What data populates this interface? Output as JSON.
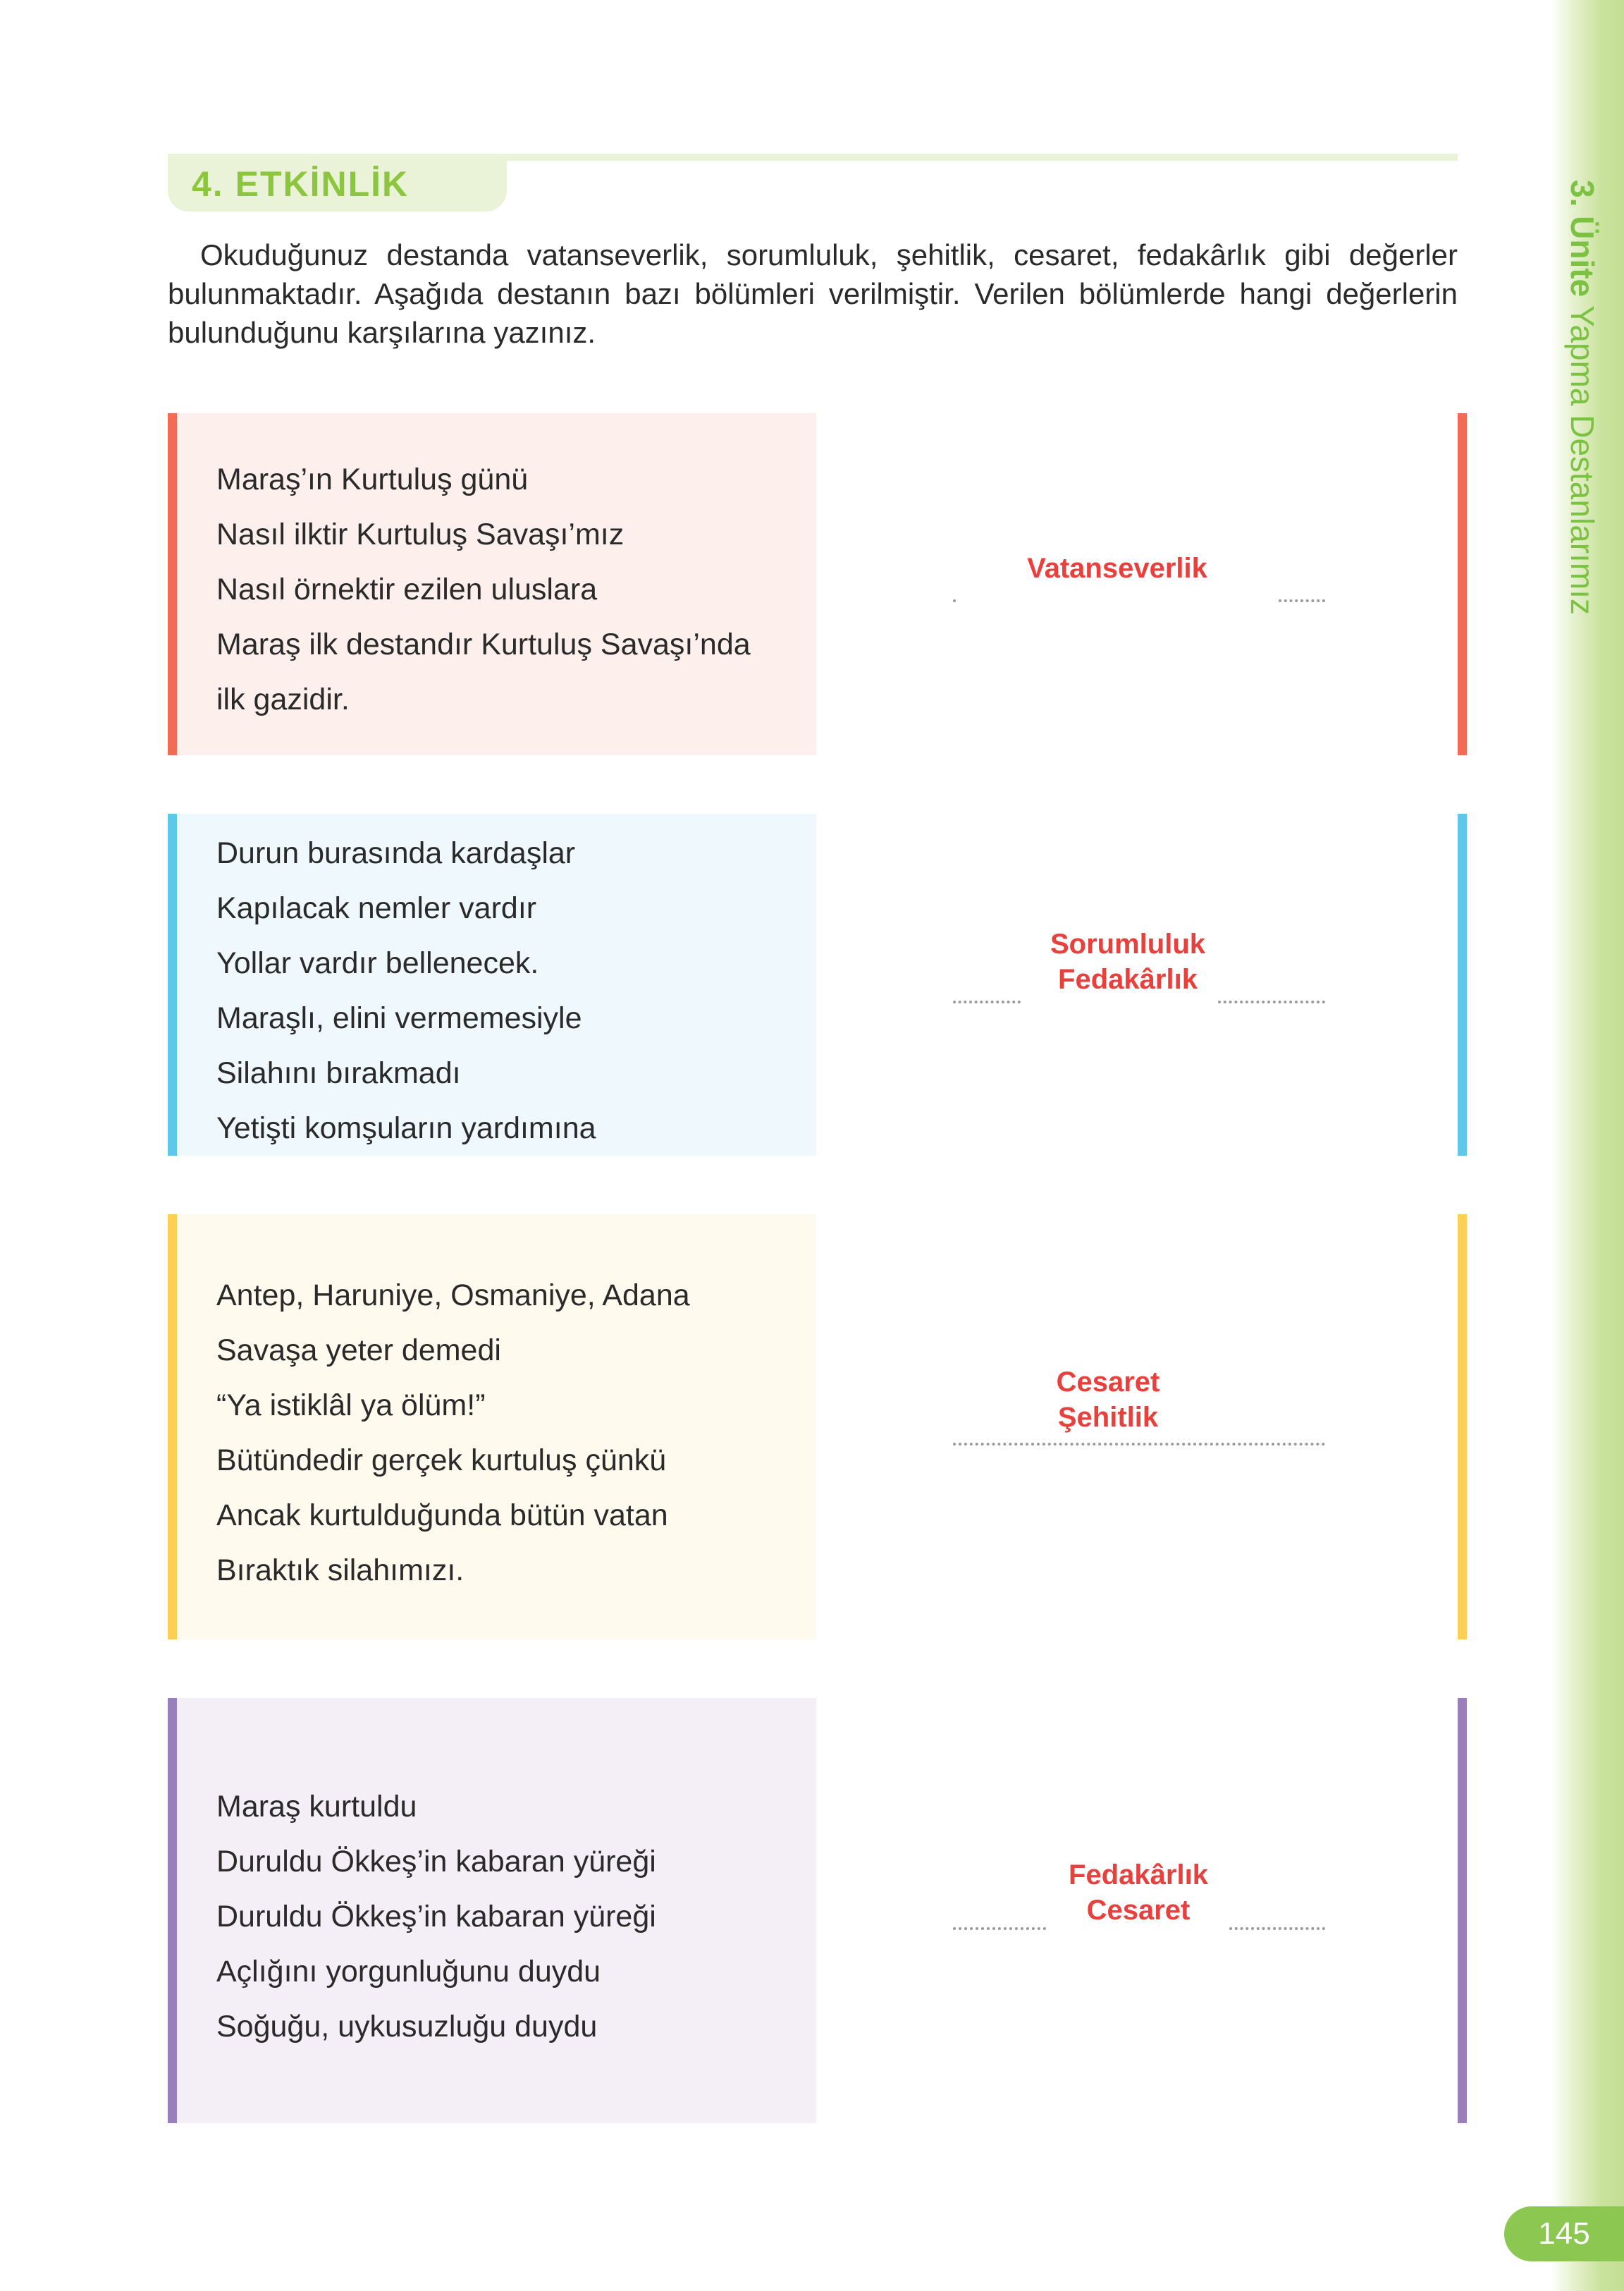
{
  "activity": {
    "title": "4. ETKİNLİK",
    "instructions": "Okuduğunuz destanda vatanseverlik, sorumluluk, şehitlik, cesaret, fedakârlık gibi değerler bulunmaktadır. Aşağıda destanın bazı bölümleri verilmiştir. Verilen bölümlerde hangi değerlerin bulunduğunu karşılarına yazınız."
  },
  "sidebar": {
    "unit": "3. Ünite",
    "unit_title": "Yapma Destanlarımız"
  },
  "page_number": "145",
  "colors": {
    "red": "#f26b55",
    "blue": "#5ec8ea",
    "yellow": "#fdd055",
    "purple": "#9a7fbd",
    "answer": "#e8413d",
    "green": "#8cc63f"
  },
  "sections": [
    {
      "lines": [
        "Maraş’ın Kurtuluş günü",
        "Nasıl ilktir Kurtuluş Savaşı’mız",
        "Nasıl örnektir ezilen uluslara",
        "Maraş ilk destandır Kurtuluş Savaşı’nda",
        "ilk gazidir."
      ],
      "answers": [
        "Vatanseverlik"
      ]
    },
    {
      "lines": [
        "Durun burasında kardaşlar",
        "Kapılacak nemler vardır",
        "Yollar vardır bellenecek.",
        "Maraşlı, elini vermemesiyle",
        "Silahını bırakmadı",
        "Yetişti komşuların yardımına"
      ],
      "answers": [
        "Sorumluluk",
        "Fedakârlık"
      ]
    },
    {
      "lines": [
        "Antep, Haruniye, Osmaniye, Adana",
        "Savaşa yeter demedi",
        "“Ya istiklâl ya ölüm!”",
        "Bütündedir gerçek kurtuluş çünkü",
        "Ancak kurtulduğunda bütün vatan",
        "Bıraktık silahımızı."
      ],
      "answers": [
        "Cesaret",
        "Şehitlik"
      ]
    },
    {
      "lines": [
        "Maraş kurtuldu",
        "Duruldu Ökkeş’in kabaran yüreği",
        "Duruldu Ökkeş’in kabaran yüreği",
        "Açlığını yorgunluğunu duydu",
        "Soğuğu, uykusuzluğu duydu"
      ],
      "answers": [
        "Fedakârlık",
        "Cesaret"
      ]
    }
  ]
}
